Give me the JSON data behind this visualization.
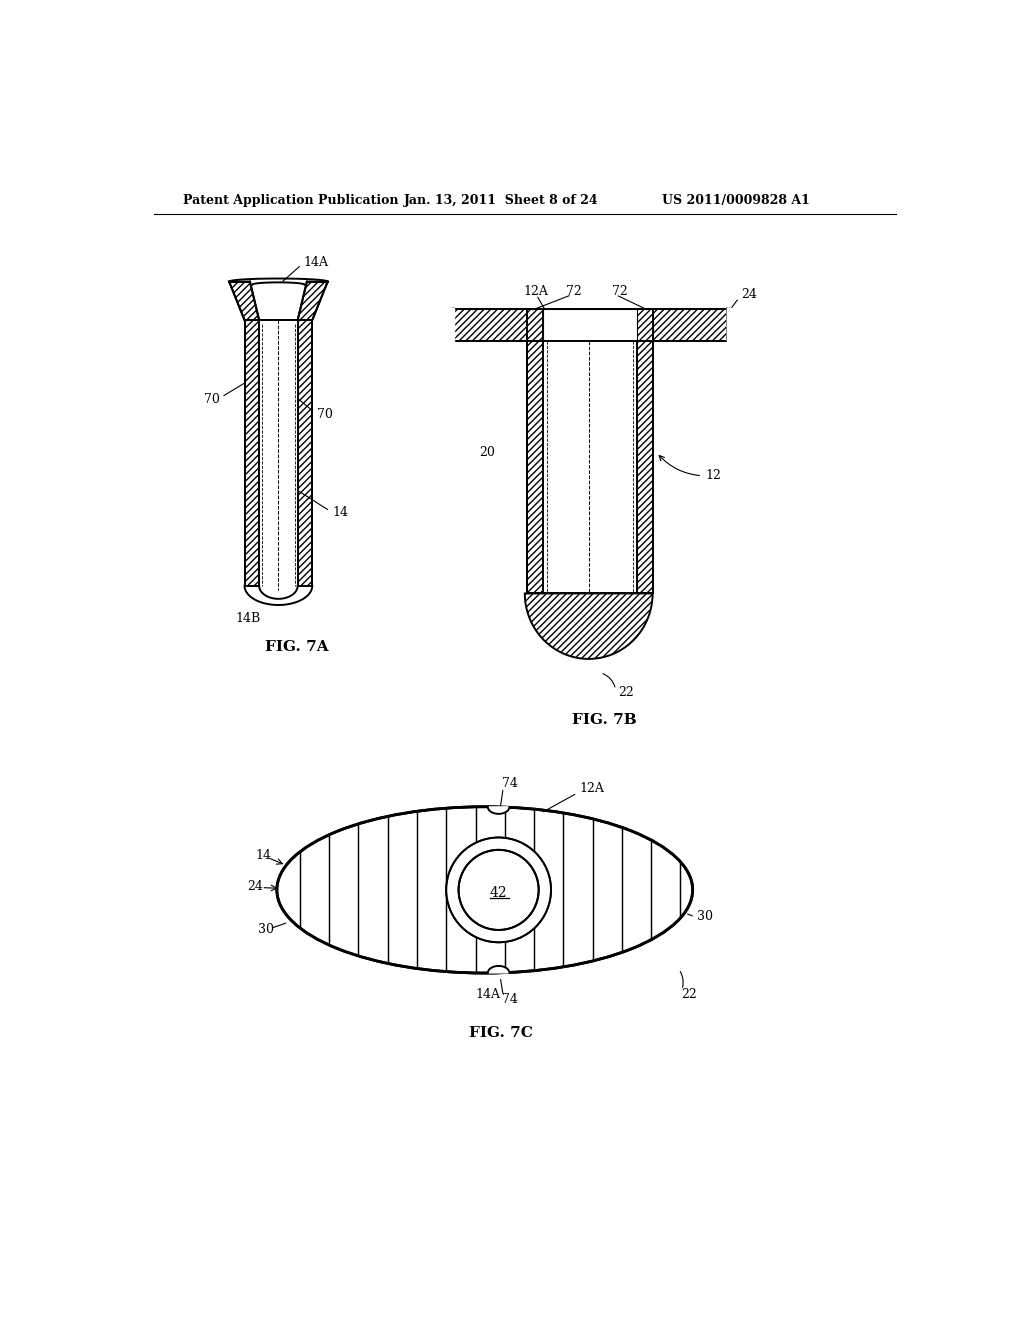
{
  "header_left": "Patent Application Publication",
  "header_mid": "Jan. 13, 2011  Sheet 8 of 24",
  "header_right": "US 2011/0009828 A1",
  "fig7a_label": "FIG. 7A",
  "fig7b_label": "FIG. 7B",
  "fig7c_label": "FIG. 7C",
  "bg_color": "#ffffff",
  "line_color": "#000000"
}
